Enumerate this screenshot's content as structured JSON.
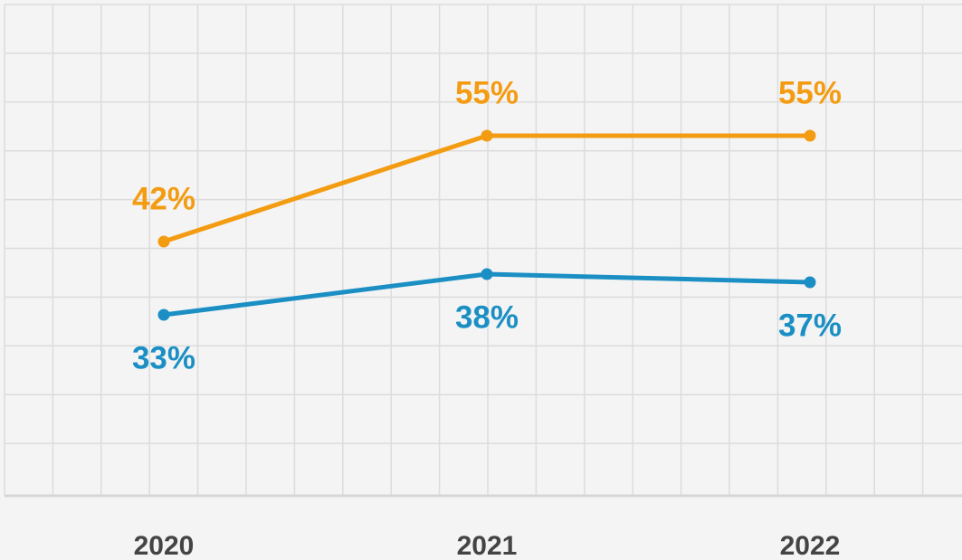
{
  "chart_data": {
    "type": "line",
    "categories": [
      "2020",
      "2021",
      "2022"
    ],
    "series": [
      {
        "color": "#f39c12",
        "values": [
          42,
          55,
          55
        ],
        "value_labels": [
          "42%",
          "55%",
          "55%"
        ],
        "label_position": "above"
      },
      {
        "color": "#1b8fc4",
        "values": [
          33,
          38,
          37
        ],
        "value_labels": [
          "33%",
          "38%",
          "37%"
        ],
        "label_position": "below"
      }
    ],
    "ylim": [
      10,
      70
    ],
    "grid": true
  }
}
